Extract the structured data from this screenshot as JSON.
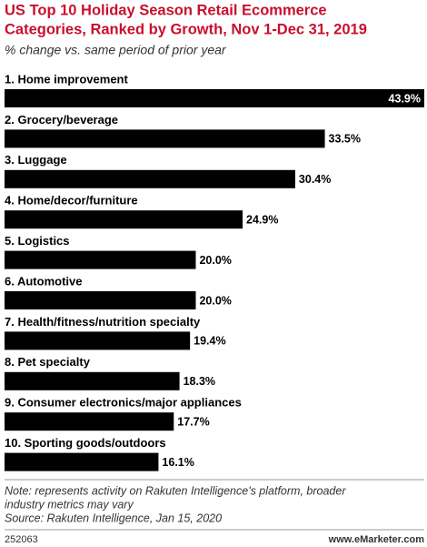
{
  "chart_data": {
    "type": "bar",
    "title": [
      "US Top 10 Holiday Season Retail Ecommerce",
      "Categories, Ranked by Growth, Nov 1-Dec 31, 2019"
    ],
    "subtitle": "% change vs. same period of prior year",
    "categories": [
      "1. Home improvement",
      "2. Grocery/beverage",
      "3. Luggage",
      "4. Home/decor/furniture",
      "5. Logistics",
      "6. Automotive",
      "7. Health/fitness/nutrition specialty",
      "8. Pet specialty",
      "9. Consumer electronics/major appliances",
      "10. Sporting goods/outdoors"
    ],
    "values": [
      43.9,
      33.5,
      30.4,
      24.9,
      20.0,
      20.0,
      19.4,
      18.3,
      17.7,
      16.1
    ],
    "value_labels": [
      "43.9%",
      "33.5%",
      "30.4%",
      "24.9%",
      "20.0%",
      "20.0%",
      "19.4%",
      "18.3%",
      "17.7%",
      "16.1%"
    ],
    "color": "#000000",
    "note": [
      "Note: represents activity on Rakuten Intelligence's platform, broader",
      "industry metrics may vary"
    ],
    "source": "Source: Rakuten Intelligence, Jan 15, 2020",
    "chart_id": "252063",
    "site": "www.eMarketer.com"
  }
}
